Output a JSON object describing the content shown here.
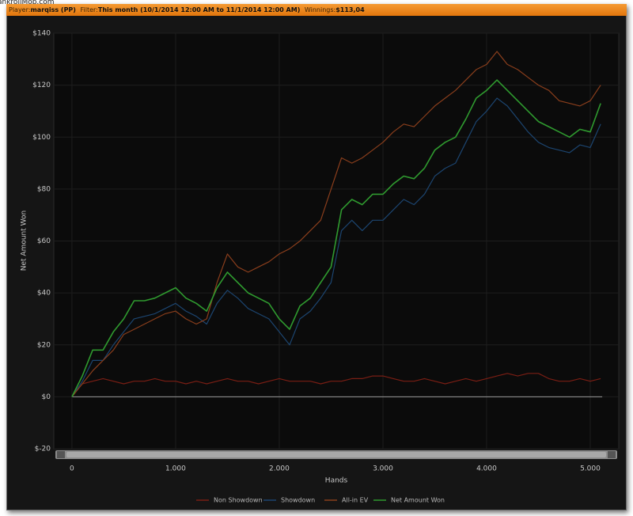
{
  "watermark": "ankrollMob.com",
  "header": {
    "player_label": "Player:",
    "player": "marqiss (PP)",
    "filter_label": "Filter:",
    "filter": "This month (10/1/2014 12:00 AM to 11/1/2014 12:00 AM)",
    "winnings_label": "Winnings:",
    "winnings": "$113,04"
  },
  "chart_data": {
    "type": "line",
    "xlabel": "Hands",
    "ylabel": "Net Amount Won",
    "x": [
      0,
      100,
      200,
      300,
      400,
      500,
      600,
      700,
      800,
      900,
      1000,
      1100,
      1200,
      1300,
      1400,
      1500,
      1600,
      1700,
      1800,
      1900,
      2000,
      2100,
      2200,
      2300,
      2400,
      2500,
      2600,
      2700,
      2800,
      2900,
      3000,
      3100,
      3200,
      3300,
      3400,
      3500,
      3600,
      3700,
      3800,
      3900,
      4000,
      4100,
      4200,
      4300,
      4400,
      4500,
      4600,
      4700,
      4800,
      4900,
      5000,
      5100
    ],
    "series": [
      {
        "name": "Non Showdown",
        "color": "#7a1e14",
        "values": [
          0,
          5,
          6,
          7,
          6,
          5,
          6,
          6,
          7,
          6,
          6,
          5,
          6,
          5,
          6,
          7,
          6,
          6,
          5,
          6,
          7,
          6,
          6,
          6,
          5,
          6,
          6,
          7,
          7,
          8,
          8,
          7,
          6,
          6,
          7,
          6,
          5,
          6,
          7,
          6,
          7,
          8,
          9,
          8,
          9,
          9,
          7,
          6,
          6,
          7,
          6,
          7
        ]
      },
      {
        "name": "Showdown",
        "color": "#1c4570",
        "values": [
          0,
          6,
          14,
          14,
          20,
          25,
          30,
          31,
          32,
          34,
          36,
          33,
          31,
          28,
          36,
          41,
          38,
          34,
          32,
          30,
          25,
          20,
          30,
          33,
          38,
          44,
          64,
          68,
          64,
          68,
          68,
          72,
          76,
          74,
          78,
          85,
          88,
          90,
          98,
          106,
          110,
          115,
          112,
          107,
          102,
          98,
          96,
          95,
          94,
          97,
          96,
          105
        ]
      },
      {
        "name": "All-in EV",
        "color": "#8a3e1c",
        "values": [
          0,
          5,
          10,
          14,
          18,
          24,
          26,
          28,
          30,
          32,
          33,
          30,
          28,
          30,
          44,
          55,
          50,
          48,
          50,
          52,
          55,
          57,
          60,
          64,
          68,
          80,
          92,
          90,
          92,
          95,
          98,
          102,
          105,
          104,
          108,
          112,
          115,
          118,
          122,
          126,
          128,
          133,
          128,
          126,
          123,
          120,
          118,
          114,
          113,
          112,
          114,
          120
        ]
      },
      {
        "name": "Net Amount Won",
        "color": "#2f9a2f",
        "values": [
          0,
          8,
          18,
          18,
          25,
          30,
          37,
          37,
          38,
          40,
          42,
          38,
          36,
          33,
          42,
          48,
          44,
          40,
          38,
          36,
          30,
          26,
          35,
          38,
          44,
          50,
          72,
          76,
          74,
          78,
          78,
          82,
          85,
          84,
          88,
          95,
          98,
          100,
          107,
          115,
          118,
          122,
          118,
          114,
          110,
          106,
          104,
          102,
          100,
          103,
          102,
          113
        ]
      }
    ],
    "xlim": [
      -175,
      5275
    ],
    "xticks": [
      0,
      {
        "value": 1000,
        "label": "1.000"
      },
      {
        "value": 2000,
        "label": "2.000"
      },
      {
        "value": 3000,
        "label": "3.000"
      },
      {
        "value": 4000,
        "label": "4.000"
      },
      {
        "value": 5000,
        "label": "5.000"
      }
    ],
    "ylim": [
      -20,
      140
    ],
    "yticks": [
      {
        "value": -20,
        "label": "$-20"
      },
      {
        "value": 0,
        "label": "$0"
      },
      {
        "value": 20,
        "label": "$20"
      },
      {
        "value": 40,
        "label": "$40"
      },
      {
        "value": 60,
        "label": "$60"
      },
      {
        "value": 80,
        "label": "$80"
      },
      {
        "value": 100,
        "label": "$100"
      },
      {
        "value": 120,
        "label": "$120"
      },
      {
        "value": 140,
        "label": "$140"
      }
    ],
    "grid": true
  }
}
